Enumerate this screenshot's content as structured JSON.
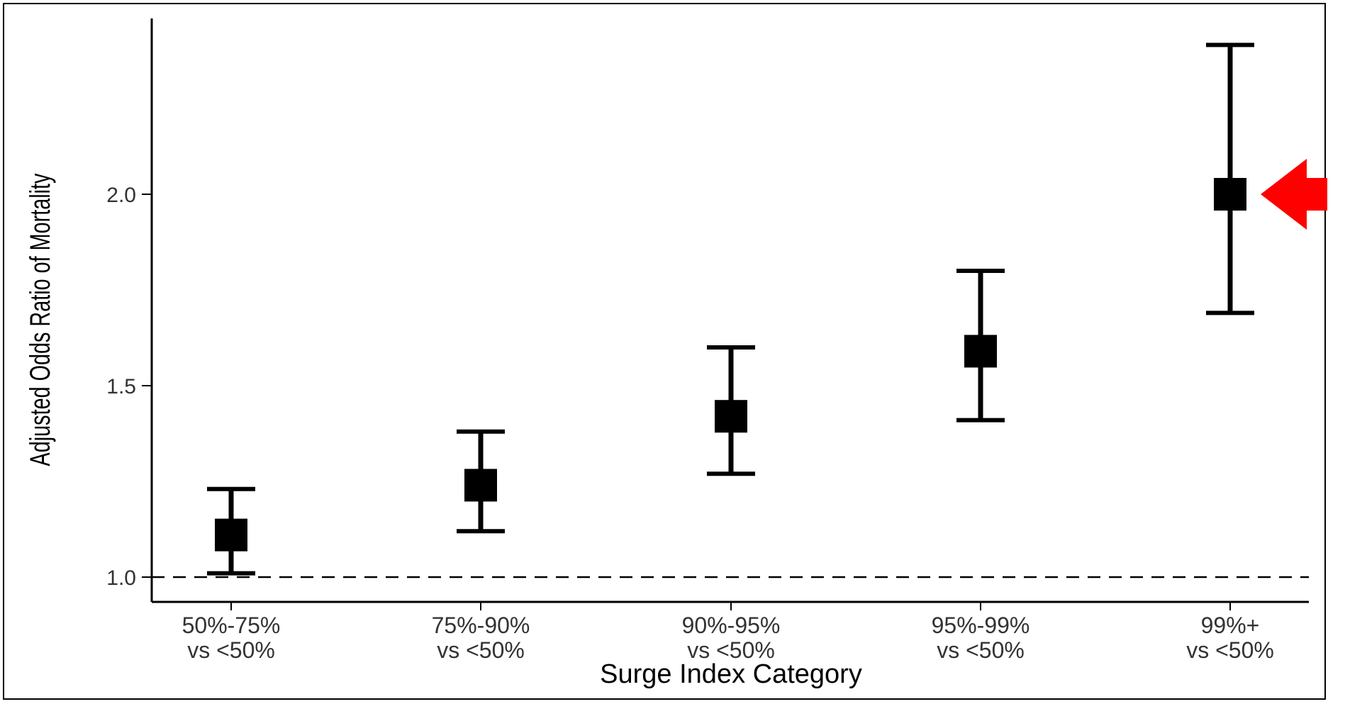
{
  "chart_data": {
    "type": "errorbar",
    "xlabel": "Surge Index Category",
    "ylabel": "Adjusted Odds Ratio of Mortality",
    "categories": [
      [
        "50%-75%",
        "vs <50%"
      ],
      [
        "75%-90%",
        "vs <50%"
      ],
      [
        "90%-95%",
        "vs <50%"
      ],
      [
        "95%-99%",
        "vs <50%"
      ],
      [
        "99%+",
        "vs <50%"
      ]
    ],
    "estimates": [
      1.11,
      1.24,
      1.42,
      1.59,
      2.0
    ],
    "lower": [
      1.01,
      1.12,
      1.27,
      1.41,
      1.69
    ],
    "upper": [
      1.23,
      1.38,
      1.6,
      1.8,
      2.39
    ],
    "yticks": [
      "1.0",
      "1.5",
      "2.0"
    ],
    "ylim": [
      0.93,
      2.45
    ],
    "reference_line": 1.0,
    "grid": false,
    "highlight_index": 4,
    "colors": {
      "marker": "#000000",
      "reference": "#000000",
      "arrow": "#ff0000"
    }
  }
}
